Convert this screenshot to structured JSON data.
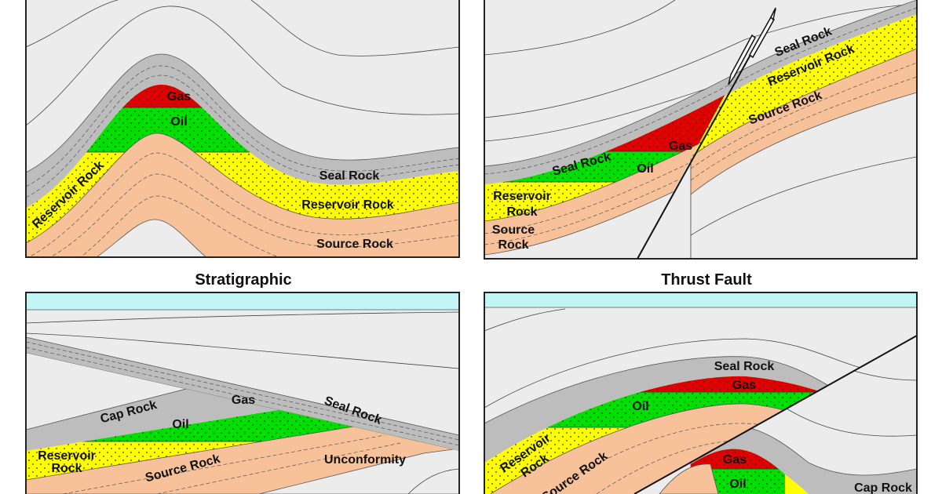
{
  "colors": {
    "background": "#ececec",
    "seal": "#bdbdbd",
    "reservoir": "#ffff00",
    "oil": "#00e000",
    "gas": "#e00000",
    "source": "#f7c29a",
    "water": "#c4f5f5"
  },
  "panels": {
    "anticline": {
      "gas": "Gas",
      "oil": "Oil",
      "seal": "Seal Rock",
      "reservoir_right": "Reservoir Rock",
      "reservoir_left": "Reservoir Rock",
      "source": "Source Rock"
    },
    "fault": {
      "seal_upper": "Seal Rock",
      "reservoir_upper": "Reservoir Rock",
      "source_upper": "Source Rock",
      "gas": "Gas",
      "oil": "Oil",
      "seal_lower": "Seal Rock",
      "reservoir_l1": "Reservoir",
      "reservoir_l2": "Rock",
      "source_l1": "Source",
      "source_l2": "Rock"
    },
    "stratigraphic": {
      "title": "Stratigraphic",
      "cap": "Cap Rock",
      "gas": "Gas",
      "oil": "Oil",
      "seal": "Seal Rock",
      "reservoir_l1": "Reservoir",
      "reservoir_l2": "Rock",
      "source": "Source Rock",
      "unconformity": "Unconformity"
    },
    "thrust": {
      "title": "Thrust Fault",
      "seal": "Seal Rock",
      "gas": "Gas",
      "oil": "Oil",
      "reservoir_l1": "Reservoir",
      "reservoir_l2": "Rock",
      "source": "Source Rock",
      "gas2": "Gas",
      "oil2": "Oil",
      "cap": "Cap Rock"
    }
  }
}
